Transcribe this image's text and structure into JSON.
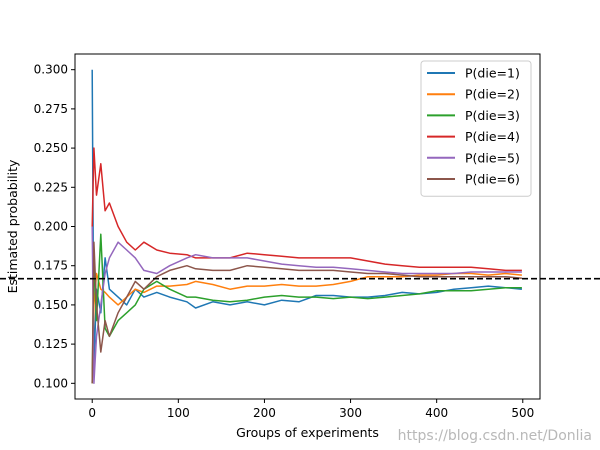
{
  "chart_data": {
    "type": "line",
    "xlabel": "Groups of experiments",
    "ylabel": "Estimated probability",
    "xlim": [
      -20,
      520
    ],
    "ylim": [
      0.09,
      0.31
    ],
    "xticks": [
      0,
      100,
      200,
      300,
      400,
      500
    ],
    "yticks": [
      0.1,
      0.125,
      0.15,
      0.175,
      0.2,
      0.225,
      0.25,
      0.275,
      0.3
    ],
    "grid": false,
    "legend_position": "top-right",
    "reference_line": {
      "y": 0.1667,
      "style": "dashed",
      "color": "#000000"
    },
    "series": [
      {
        "name": "P(die=1)",
        "color": "#1f77b4",
        "x": [
          0,
          2,
          5,
          10,
          15,
          20,
          30,
          40,
          50,
          60,
          75,
          90,
          110,
          120,
          140,
          160,
          180,
          200,
          220,
          240,
          260,
          280,
          300,
          320,
          340,
          360,
          380,
          400,
          420,
          440,
          460,
          480,
          499
        ],
        "y": [
          0.3,
          0.11,
          0.16,
          0.145,
          0.18,
          0.16,
          0.155,
          0.15,
          0.16,
          0.155,
          0.158,
          0.155,
          0.152,
          0.148,
          0.152,
          0.15,
          0.152,
          0.15,
          0.153,
          0.152,
          0.156,
          0.156,
          0.155,
          0.155,
          0.156,
          0.158,
          0.157,
          0.158,
          0.16,
          0.161,
          0.162,
          0.161,
          0.16
        ]
      },
      {
        "name": "P(die=2)",
        "color": "#ff7f0e",
        "x": [
          0,
          2,
          5,
          10,
          15,
          20,
          30,
          40,
          50,
          60,
          75,
          90,
          110,
          120,
          140,
          160,
          180,
          200,
          220,
          240,
          260,
          280,
          300,
          320,
          340,
          360,
          380,
          400,
          420,
          440,
          460,
          480,
          499
        ],
        "y": [
          0.1,
          0.15,
          0.17,
          0.16,
          0.158,
          0.155,
          0.15,
          0.155,
          0.16,
          0.158,
          0.162,
          0.162,
          0.163,
          0.165,
          0.163,
          0.16,
          0.162,
          0.162,
          0.163,
          0.162,
          0.162,
          0.163,
          0.165,
          0.168,
          0.168,
          0.168,
          0.169,
          0.169,
          0.17,
          0.17,
          0.169,
          0.17,
          0.169
        ]
      },
      {
        "name": "P(die=3)",
        "color": "#2ca02c",
        "x": [
          0,
          2,
          5,
          10,
          15,
          20,
          30,
          40,
          50,
          60,
          75,
          90,
          110,
          120,
          140,
          160,
          180,
          200,
          220,
          240,
          260,
          280,
          300,
          320,
          340,
          360,
          380,
          400,
          420,
          440,
          460,
          480,
          499
        ],
        "y": [
          0.1,
          0.18,
          0.14,
          0.195,
          0.135,
          0.13,
          0.14,
          0.145,
          0.15,
          0.16,
          0.165,
          0.16,
          0.155,
          0.155,
          0.153,
          0.152,
          0.153,
          0.155,
          0.156,
          0.155,
          0.155,
          0.154,
          0.155,
          0.154,
          0.155,
          0.156,
          0.157,
          0.159,
          0.159,
          0.159,
          0.16,
          0.161,
          0.161
        ]
      },
      {
        "name": "P(die=4)",
        "color": "#d62728",
        "x": [
          0,
          2,
          5,
          10,
          15,
          20,
          30,
          40,
          50,
          60,
          75,
          90,
          110,
          120,
          140,
          160,
          180,
          200,
          220,
          240,
          260,
          280,
          300,
          320,
          340,
          360,
          380,
          400,
          420,
          440,
          460,
          480,
          499
        ],
        "y": [
          0.2,
          0.25,
          0.22,
          0.24,
          0.21,
          0.215,
          0.2,
          0.19,
          0.185,
          0.19,
          0.185,
          0.183,
          0.182,
          0.18,
          0.18,
          0.18,
          0.183,
          0.182,
          0.181,
          0.18,
          0.18,
          0.18,
          0.18,
          0.178,
          0.176,
          0.175,
          0.174,
          0.174,
          0.174,
          0.174,
          0.173,
          0.172,
          0.172
        ]
      },
      {
        "name": "P(die=5)",
        "color": "#9467bd",
        "x": [
          0,
          2,
          5,
          10,
          15,
          20,
          30,
          40,
          50,
          60,
          75,
          90,
          110,
          120,
          140,
          160,
          180,
          200,
          220,
          240,
          260,
          280,
          300,
          320,
          340,
          360,
          380,
          400,
          420,
          440,
          460,
          480,
          499
        ],
        "y": [
          0.2,
          0.1,
          0.13,
          0.15,
          0.17,
          0.18,
          0.19,
          0.185,
          0.18,
          0.172,
          0.17,
          0.175,
          0.18,
          0.182,
          0.18,
          0.18,
          0.18,
          0.178,
          0.176,
          0.175,
          0.174,
          0.174,
          0.173,
          0.172,
          0.171,
          0.17,
          0.17,
          0.17,
          0.17,
          0.171,
          0.171,
          0.171,
          0.171
        ]
      },
      {
        "name": "P(die=6)",
        "color": "#8c564b",
        "x": [
          0,
          2,
          5,
          10,
          15,
          20,
          30,
          40,
          50,
          60,
          75,
          90,
          110,
          120,
          140,
          160,
          180,
          200,
          220,
          240,
          260,
          280,
          300,
          320,
          340,
          360,
          380,
          400,
          420,
          440,
          460,
          480,
          499
        ],
        "y": [
          0.1,
          0.19,
          0.15,
          0.12,
          0.14,
          0.13,
          0.145,
          0.155,
          0.165,
          0.16,
          0.168,
          0.172,
          0.175,
          0.173,
          0.172,
          0.172,
          0.175,
          0.174,
          0.173,
          0.172,
          0.172,
          0.172,
          0.171,
          0.17,
          0.17,
          0.169,
          0.168,
          0.168,
          0.168,
          0.168,
          0.168,
          0.168,
          0.167
        ]
      }
    ]
  },
  "watermark": "https://blog.csdn.net/Donlia"
}
